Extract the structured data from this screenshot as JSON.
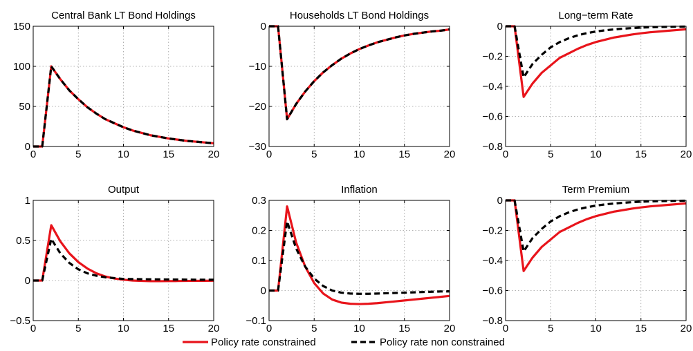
{
  "colors": {
    "constrained": "#e8141b",
    "non_constrained": "#000000",
    "grid": "#9a9a9a"
  },
  "legend": {
    "location": "bottom-center",
    "entries": [
      {
        "label": "Policy rate constrained",
        "style": "solid"
      },
      {
        "label": "Policy rate non constrained",
        "style": "dashed"
      }
    ]
  },
  "chart_data": [
    {
      "type": "line",
      "title": "Central Bank LT Bond Holdings",
      "xlim": [
        0,
        20
      ],
      "ylim": [
        0,
        150
      ],
      "xticks": [
        0,
        5,
        10,
        15,
        20
      ],
      "yticks": [
        0,
        50,
        100,
        150
      ],
      "grid": true,
      "x": [
        0,
        1,
        2,
        3,
        4,
        5,
        6,
        7,
        8,
        9,
        10,
        11,
        12,
        13,
        14,
        15,
        16,
        17,
        18,
        19,
        20
      ],
      "series": [
        {
          "name": "Policy rate constrained",
          "values": [
            0,
            0,
            100,
            84,
            70,
            59,
            49,
            41,
            34,
            29,
            24,
            20,
            17,
            14,
            12,
            10,
            8.5,
            7,
            6,
            5,
            4
          ]
        },
        {
          "name": "Policy rate non constrained",
          "values": [
            0,
            0,
            100,
            84,
            70,
            59,
            49,
            41,
            34,
            29,
            24,
            20,
            17,
            14,
            12,
            10,
            8.5,
            7,
            6,
            5,
            4
          ]
        }
      ]
    },
    {
      "type": "line",
      "title": "Households LT Bond Holdings",
      "xlim": [
        0,
        20
      ],
      "ylim": [
        -30,
        0
      ],
      "xticks": [
        0,
        5,
        10,
        15,
        20
      ],
      "yticks": [
        -30,
        -20,
        -10,
        0
      ],
      "grid": true,
      "x": [
        0,
        1,
        2,
        3,
        4,
        5,
        6,
        7,
        8,
        9,
        10,
        11,
        12,
        13,
        14,
        15,
        16,
        17,
        18,
        19,
        20
      ],
      "series": [
        {
          "name": "Policy rate constrained",
          "values": [
            0,
            0,
            -23.2,
            -19.4,
            -16.3,
            -13.7,
            -11.5,
            -9.7,
            -8.1,
            -6.8,
            -5.7,
            -4.8,
            -4.0,
            -3.4,
            -2.8,
            -2.3,
            -1.9,
            -1.6,
            -1.3,
            -1.1,
            -0.8
          ]
        },
        {
          "name": "Policy rate non constrained",
          "values": [
            0,
            0,
            -23.2,
            -19.4,
            -16.3,
            -13.7,
            -11.5,
            -9.7,
            -8.1,
            -6.8,
            -5.7,
            -4.8,
            -4.0,
            -3.4,
            -2.8,
            -2.3,
            -1.9,
            -1.6,
            -1.3,
            -1.1,
            -0.8
          ]
        }
      ]
    },
    {
      "type": "line",
      "title": "Long−term Rate",
      "xlim": [
        0,
        20
      ],
      "ylim": [
        -0.8,
        0
      ],
      "xticks": [
        0,
        5,
        10,
        15,
        20
      ],
      "yticks": [
        -0.8,
        -0.6,
        -0.4,
        -0.2,
        0
      ],
      "grid": true,
      "x": [
        0,
        1,
        2,
        3,
        4,
        5,
        6,
        7,
        8,
        9,
        10,
        11,
        12,
        13,
        14,
        15,
        16,
        17,
        18,
        19,
        20
      ],
      "series": [
        {
          "name": "Policy rate constrained",
          "values": [
            0,
            0,
            -0.47,
            -0.38,
            -0.31,
            -0.26,
            -0.21,
            -0.18,
            -0.15,
            -0.125,
            -0.105,
            -0.09,
            -0.075,
            -0.065,
            -0.055,
            -0.047,
            -0.04,
            -0.035,
            -0.03,
            -0.025,
            -0.02
          ]
        },
        {
          "name": "Policy rate non constrained",
          "values": [
            0,
            0,
            -0.34,
            -0.25,
            -0.19,
            -0.14,
            -0.105,
            -0.08,
            -0.06,
            -0.046,
            -0.035,
            -0.027,
            -0.021,
            -0.016,
            -0.012,
            -0.009,
            -0.007,
            -0.005,
            -0.004,
            -0.003,
            -0.002
          ]
        }
      ]
    },
    {
      "type": "line",
      "title": "Output",
      "xlim": [
        0,
        20
      ],
      "ylim": [
        -0.5,
        1
      ],
      "xticks": [
        0,
        5,
        10,
        15,
        20
      ],
      "yticks": [
        -0.5,
        0,
        0.5,
        1
      ],
      "grid": true,
      "x": [
        0,
        1,
        2,
        3,
        4,
        5,
        6,
        7,
        8,
        9,
        10,
        11,
        12,
        13,
        14,
        15,
        16,
        17,
        18,
        19,
        20
      ],
      "series": [
        {
          "name": "Policy rate constrained",
          "values": [
            0,
            0,
            0.69,
            0.49,
            0.34,
            0.23,
            0.15,
            0.09,
            0.05,
            0.025,
            0.01,
            0,
            -0.005,
            -0.008,
            -0.008,
            -0.007,
            -0.006,
            -0.005,
            -0.004,
            -0.003,
            -0.002
          ]
        },
        {
          "name": "Policy rate non constrained",
          "values": [
            0,
            0,
            0.52,
            0.34,
            0.22,
            0.14,
            0.09,
            0.06,
            0.04,
            0.03,
            0.02,
            0.018,
            0.016,
            0.015,
            0.014,
            0.013,
            0.012,
            0.011,
            0.01,
            0.01,
            0.01
          ]
        }
      ]
    },
    {
      "type": "line",
      "title": "Inflation",
      "xlim": [
        0,
        20
      ],
      "ylim": [
        -0.1,
        0.3
      ],
      "xticks": [
        0,
        5,
        10,
        15,
        20
      ],
      "yticks": [
        -0.1,
        0,
        0.1,
        0.2,
        0.3
      ],
      "grid": true,
      "x": [
        0,
        1,
        2,
        3,
        4,
        5,
        6,
        7,
        8,
        9,
        10,
        11,
        12,
        13,
        14,
        15,
        16,
        17,
        18,
        19,
        20
      ],
      "series": [
        {
          "name": "Policy rate constrained",
          "values": [
            0,
            0,
            0.28,
            0.16,
            0.08,
            0.025,
            -0.01,
            -0.03,
            -0.04,
            -0.044,
            -0.045,
            -0.044,
            -0.042,
            -0.039,
            -0.036,
            -0.033,
            -0.03,
            -0.027,
            -0.024,
            -0.021,
            -0.018
          ]
        },
        {
          "name": "Policy rate non constrained",
          "values": [
            0,
            0,
            0.23,
            0.14,
            0.08,
            0.04,
            0.015,
            0,
            -0.007,
            -0.01,
            -0.011,
            -0.011,
            -0.01,
            -0.009,
            -0.008,
            -0.007,
            -0.006,
            -0.005,
            -0.004,
            -0.003,
            -0.003
          ]
        }
      ]
    },
    {
      "type": "line",
      "title": "Term Premium",
      "xlim": [
        0,
        20
      ],
      "ylim": [
        -0.8,
        0
      ],
      "xticks": [
        0,
        5,
        10,
        15,
        20
      ],
      "yticks": [
        -0.8,
        -0.6,
        -0.4,
        -0.2,
        0
      ],
      "grid": true,
      "x": [
        0,
        1,
        2,
        3,
        4,
        5,
        6,
        7,
        8,
        9,
        10,
        11,
        12,
        13,
        14,
        15,
        16,
        17,
        18,
        19,
        20
      ],
      "series": [
        {
          "name": "Policy rate constrained",
          "values": [
            0,
            0,
            -0.47,
            -0.38,
            -0.31,
            -0.26,
            -0.21,
            -0.18,
            -0.15,
            -0.125,
            -0.105,
            -0.09,
            -0.075,
            -0.065,
            -0.055,
            -0.047,
            -0.04,
            -0.035,
            -0.03,
            -0.025,
            -0.02
          ]
        },
        {
          "name": "Policy rate non constrained",
          "values": [
            0,
            0,
            -0.34,
            -0.25,
            -0.19,
            -0.14,
            -0.105,
            -0.08,
            -0.06,
            -0.046,
            -0.035,
            -0.027,
            -0.021,
            -0.016,
            -0.012,
            -0.009,
            -0.007,
            -0.005,
            -0.004,
            -0.003,
            -0.002
          ]
        }
      ]
    }
  ]
}
